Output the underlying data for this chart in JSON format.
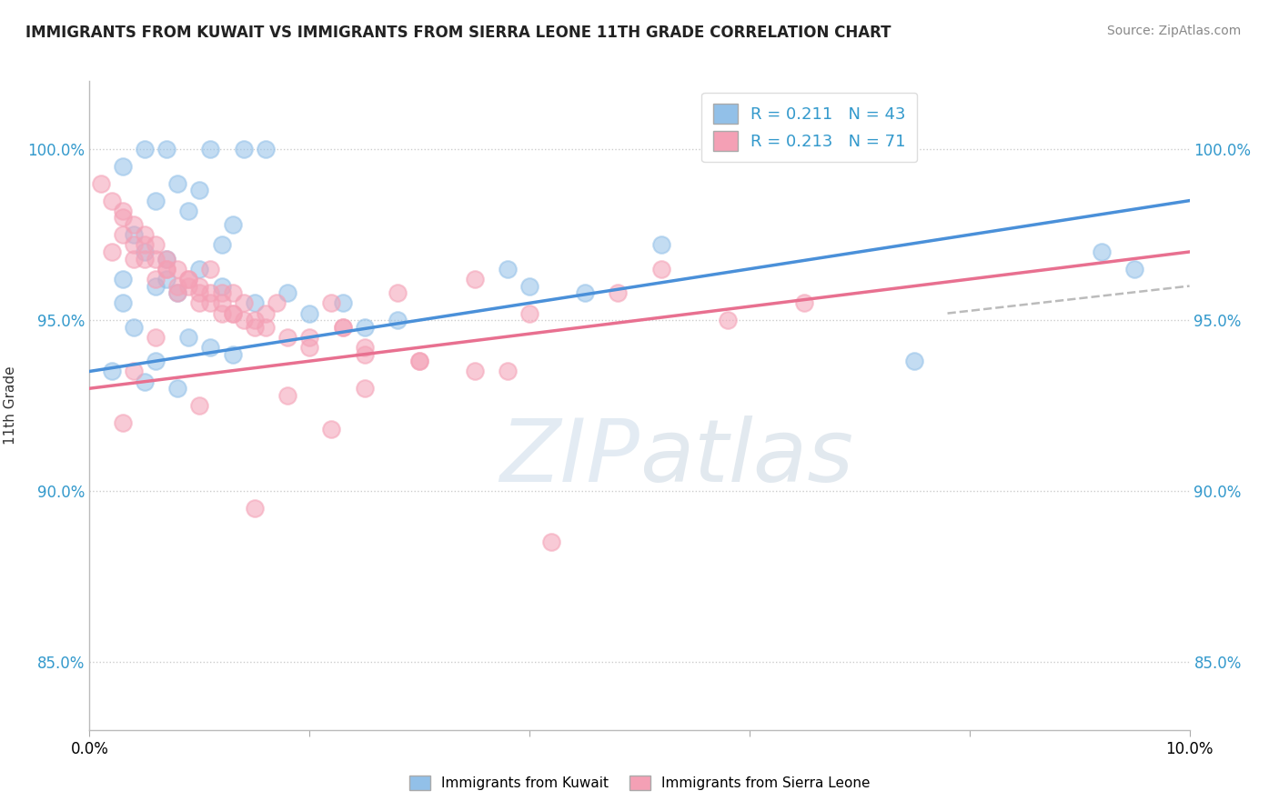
{
  "title": "IMMIGRANTS FROM KUWAIT VS IMMIGRANTS FROM SIERRA LEONE 11TH GRADE CORRELATION CHART",
  "source": "Source: ZipAtlas.com",
  "ylabel": "11th Grade",
  "xlim": [
    0.0,
    10.0
  ],
  "ylim": [
    83.0,
    102.0
  ],
  "yticks": [
    85.0,
    90.0,
    95.0,
    100.0
  ],
  "legend_label1": "Immigrants from Kuwait",
  "legend_label2": "Immigrants from Sierra Leone",
  "watermark": "ZIPatlas",
  "color_blue": "#92C0E8",
  "color_pink": "#F4A0B5",
  "color_blue_line": "#4A90D9",
  "color_pink_line": "#E87090",
  "color_dashed": "#BBBBBB",
  "blue_line_x0": 0.0,
  "blue_line_y0": 93.5,
  "blue_line_x1": 10.0,
  "blue_line_y1": 98.5,
  "pink_line_x0": 0.0,
  "pink_line_y0": 93.0,
  "pink_line_x1": 10.0,
  "pink_line_y1": 97.0,
  "dashed_line_x": [
    7.8,
    10.0
  ],
  "dashed_line_y": [
    95.2,
    96.0
  ],
  "blue_scatter_x": [
    0.5,
    0.7,
    1.1,
    1.4,
    1.6,
    0.3,
    0.8,
    1.0,
    0.6,
    0.9,
    1.3,
    0.4,
    1.2,
    0.5,
    0.7,
    1.0,
    0.3,
    0.6,
    0.8,
    1.5,
    2.0,
    2.3,
    3.8,
    5.2,
    4.5,
    9.5,
    0.4,
    0.9,
    1.1,
    2.5,
    0.6,
    1.3,
    2.8,
    0.2,
    0.5,
    0.8,
    4.0,
    7.5,
    9.2,
    0.3,
    0.7,
    1.8,
    1.2
  ],
  "blue_scatter_y": [
    100.0,
    100.0,
    100.0,
    100.0,
    100.0,
    99.5,
    99.0,
    98.8,
    98.5,
    98.2,
    97.8,
    97.5,
    97.2,
    97.0,
    96.8,
    96.5,
    96.2,
    96.0,
    95.8,
    95.5,
    95.2,
    95.5,
    96.5,
    97.2,
    95.8,
    96.5,
    94.8,
    94.5,
    94.2,
    94.8,
    93.8,
    94.0,
    95.0,
    93.5,
    93.2,
    93.0,
    96.0,
    93.8,
    97.0,
    95.5,
    96.2,
    95.8,
    96.0
  ],
  "pink_scatter_x": [
    0.1,
    0.2,
    0.3,
    0.4,
    0.5,
    0.6,
    0.7,
    0.8,
    0.9,
    1.0,
    1.1,
    1.2,
    1.3,
    1.4,
    1.5,
    0.3,
    0.5,
    0.7,
    0.9,
    1.1,
    1.3,
    1.6,
    1.8,
    2.0,
    2.3,
    2.5,
    3.0,
    3.5,
    4.0,
    4.8,
    5.2,
    5.8,
    6.5,
    0.2,
    0.4,
    0.6,
    0.8,
    1.0,
    1.2,
    1.5,
    2.2,
    2.8,
    3.5,
    0.3,
    0.6,
    1.0,
    1.4,
    2.0,
    2.5,
    3.0,
    1.1,
    1.7,
    2.3,
    0.4,
    0.8,
    1.3,
    0.5,
    0.9,
    1.6,
    0.7,
    1.2,
    0.6,
    0.4,
    1.8,
    2.5,
    3.8,
    0.3,
    1.0,
    2.2,
    1.5,
    4.2
  ],
  "pink_scatter_y": [
    99.0,
    98.5,
    98.0,
    97.8,
    97.5,
    97.2,
    96.8,
    96.5,
    96.2,
    96.0,
    95.8,
    95.5,
    95.2,
    95.0,
    94.8,
    98.2,
    97.2,
    96.5,
    96.0,
    95.5,
    95.2,
    94.8,
    94.5,
    94.2,
    94.8,
    94.0,
    93.8,
    93.5,
    95.2,
    95.8,
    96.5,
    95.0,
    95.5,
    97.0,
    96.8,
    96.2,
    95.8,
    95.5,
    95.2,
    95.0,
    95.5,
    95.8,
    96.2,
    97.5,
    96.8,
    95.8,
    95.5,
    94.5,
    94.2,
    93.8,
    96.5,
    95.5,
    94.8,
    97.2,
    96.0,
    95.8,
    96.8,
    96.2,
    95.2,
    96.5,
    95.8,
    94.5,
    93.5,
    92.8,
    93.0,
    93.5,
    92.0,
    92.5,
    91.8,
    89.5,
    88.5
  ]
}
